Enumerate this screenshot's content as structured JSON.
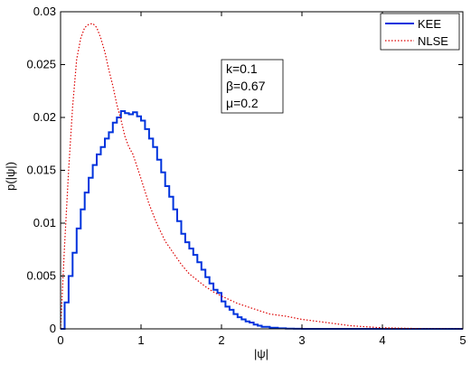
{
  "chart_data": {
    "type": "line",
    "title": "",
    "xlabel": "|ψ|",
    "ylabel": "p(|ψ|)",
    "xlim": [
      0,
      5
    ],
    "ylim": [
      0,
      0.03
    ],
    "xticks": [
      "0",
      "1",
      "2",
      "3",
      "4",
      "5"
    ],
    "yticks": [
      "0",
      "0.005",
      "0.01",
      "0.015",
      "0.02",
      "0.025",
      "0.03"
    ],
    "grid": false,
    "legend_position": "top-right",
    "annotation": [
      "k=0.1",
      "β=0.67",
      "μ=0.2"
    ],
    "series": [
      {
        "name": "KEE",
        "color": "#0033dd",
        "style": "solid-step",
        "x": [
          0.0,
          0.05,
          0.1,
          0.15,
          0.2,
          0.25,
          0.3,
          0.35,
          0.4,
          0.45,
          0.5,
          0.55,
          0.6,
          0.65,
          0.7,
          0.75,
          0.8,
          0.85,
          0.9,
          0.95,
          1.0,
          1.05,
          1.1,
          1.15,
          1.2,
          1.25,
          1.3,
          1.35,
          1.4,
          1.45,
          1.5,
          1.55,
          1.6,
          1.65,
          1.7,
          1.75,
          1.8,
          1.85,
          1.9,
          1.95,
          2.0,
          2.05,
          2.1,
          2.15,
          2.2,
          2.25,
          2.3,
          2.35,
          2.4,
          2.45,
          2.5,
          2.6,
          2.7,
          2.8,
          2.9,
          3.0,
          3.5,
          4.0,
          4.5,
          5.0
        ],
        "y": [
          0.0,
          0.0025,
          0.005,
          0.0072,
          0.0095,
          0.0113,
          0.0129,
          0.0143,
          0.0155,
          0.0165,
          0.0172,
          0.018,
          0.0186,
          0.0195,
          0.02,
          0.0206,
          0.0204,
          0.0203,
          0.0205,
          0.0201,
          0.0197,
          0.0189,
          0.018,
          0.0172,
          0.016,
          0.0148,
          0.0135,
          0.0125,
          0.0113,
          0.0102,
          0.009,
          0.0082,
          0.0076,
          0.007,
          0.0063,
          0.0056,
          0.0049,
          0.0043,
          0.0037,
          0.0034,
          0.0026,
          0.0021,
          0.0018,
          0.0014,
          0.0011,
          0.0009,
          0.0007,
          0.0006,
          0.0004,
          0.0003,
          0.0002,
          0.0001,
          5e-05,
          2e-05,
          1e-05,
          0.0,
          0.0,
          0.0,
          0.0,
          0.0
        ]
      },
      {
        "name": "NLSE",
        "color": "#dd0000",
        "style": "dotted",
        "x": [
          0.0,
          0.05,
          0.1,
          0.15,
          0.2,
          0.25,
          0.3,
          0.35,
          0.4,
          0.45,
          0.5,
          0.55,
          0.6,
          0.65,
          0.7,
          0.75,
          0.8,
          0.85,
          0.9,
          1.0,
          1.1,
          1.2,
          1.3,
          1.4,
          1.5,
          1.6,
          1.7,
          1.8,
          1.9,
          2.0,
          2.2,
          2.4,
          2.6,
          2.8,
          3.0,
          3.2,
          3.4,
          3.6,
          3.8,
          4.0,
          4.5,
          5.0
        ],
        "y": [
          0.0,
          0.008,
          0.015,
          0.021,
          0.0255,
          0.0275,
          0.0285,
          0.0288,
          0.0289,
          0.0285,
          0.0275,
          0.0262,
          0.0245,
          0.023,
          0.0212,
          0.0198,
          0.0182,
          0.0172,
          0.0165,
          0.0142,
          0.0118,
          0.0099,
          0.0083,
          0.0072,
          0.0061,
          0.0052,
          0.0046,
          0.004,
          0.0035,
          0.0031,
          0.0024,
          0.0019,
          0.0014,
          0.0012,
          0.0009,
          0.0007,
          0.0005,
          0.0003,
          0.0002,
          0.0001,
          2e-05,
          0.0
        ]
      }
    ]
  }
}
